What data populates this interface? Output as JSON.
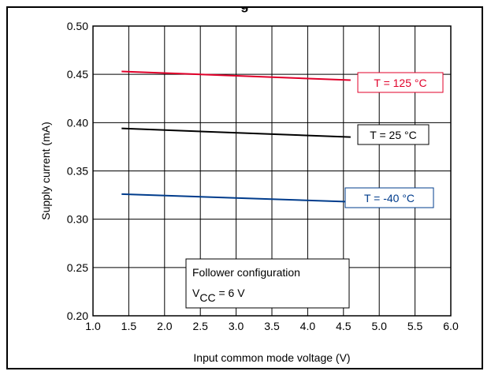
{
  "header": {
    "title_fragment": "g"
  },
  "chart_data": {
    "type": "line",
    "title": "",
    "xlabel": "Input common mode voltage (V)",
    "ylabel": "Supply  current (mA)",
    "xlim": [
      1.0,
      6.0
    ],
    "ylim": [
      0.2,
      0.5
    ],
    "xticks": [
      "1.0",
      "1.5",
      "2.0",
      "2.5",
      "3.0",
      "3.5",
      "4.0",
      "4.5",
      "5.0",
      "5.5",
      "6.0"
    ],
    "yticks": [
      "0.20",
      "0.25",
      "0.30",
      "0.35",
      "0.40",
      "0.45",
      "0.50"
    ],
    "grid": true,
    "series": [
      {
        "name": "T = 125 °C",
        "color": "#e0002a",
        "x": [
          1.4,
          4.6
        ],
        "y": [
          0.453,
          0.444
        ]
      },
      {
        "name": "T = 25 °C",
        "color": "#000000",
        "x": [
          1.4,
          4.6
        ],
        "y": [
          0.394,
          0.385
        ]
      },
      {
        "name": "T = -40 °C",
        "color": "#003c8c",
        "x": [
          1.4,
          4.6
        ],
        "y": [
          0.326,
          0.318
        ]
      }
    ],
    "annotation": {
      "line1": "Follower configuration",
      "symbol": "V",
      "subscript": "CC",
      "value": " = 6 V"
    }
  }
}
